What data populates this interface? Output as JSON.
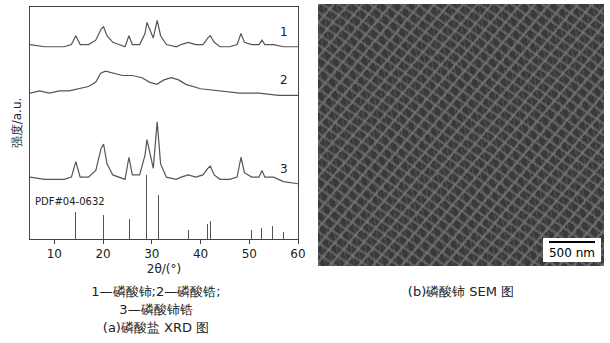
{
  "chart_data": {
    "type": "line",
    "x_title": "2θ/(°)",
    "y_title": "强度/a.u.",
    "xlim": [
      5,
      60
    ],
    "xticks": [
      10,
      20,
      30,
      40,
      50,
      60
    ],
    "ylim": [
      0,
      105
    ],
    "tick_labels": "x",
    "grid": false,
    "series": [
      {
        "name": "1",
        "color": "#555555",
        "x": [
          5,
          8,
          10,
          12,
          13.5,
          14.4,
          15.3,
          17,
          18.5,
          19.6,
          20.1,
          20.8,
          22,
          24.5,
          25.3,
          26,
          27.5,
          28.6,
          29.0,
          29.5,
          30.3,
          31.1,
          31.8,
          33,
          35,
          36,
          37.5,
          39,
          40.5,
          41.5,
          42.0,
          42.8,
          44,
          46,
          47.5,
          48.3,
          49,
          50.5,
          52,
          52.6,
          53.2,
          55,
          57,
          60
        ],
        "values": [
          88,
          87,
          87,
          87,
          88,
          92,
          88,
          88,
          90,
          95,
          96,
          92,
          89,
          87,
          92,
          88,
          88,
          93,
          98,
          95,
          91,
          99,
          92,
          88,
          87,
          88,
          89,
          88,
          88,
          91,
          92,
          89,
          87,
          87,
          88,
          93,
          89,
          88,
          88,
          90,
          88,
          88,
          87,
          87
        ]
      },
      {
        "name": "2",
        "color": "#555555",
        "x": [
          5,
          7,
          9,
          11,
          13,
          15,
          17,
          18.5,
          19.5,
          20.5,
          22,
          24,
          26,
          28,
          29.5,
          31,
          32.5,
          34,
          35.5,
          37,
          40,
          44,
          48,
          52,
          56,
          60
        ],
        "values": [
          66,
          67,
          66,
          67,
          67,
          68,
          69,
          71,
          75,
          76,
          75,
          74,
          74,
          73,
          71,
          70,
          72,
          73,
          72,
          70,
          68,
          67,
          66,
          66,
          65,
          65
        ]
      },
      {
        "name": "3",
        "color": "#555555",
        "x": [
          5,
          8,
          10,
          12,
          13.5,
          14.4,
          15.3,
          17,
          18.5,
          19.6,
          20.1,
          20.8,
          22,
          24.5,
          25.3,
          26,
          27.5,
          28.6,
          29.0,
          29.5,
          30.3,
          31.1,
          31.8,
          33,
          35,
          36,
          37.5,
          39,
          40.5,
          41.5,
          42.0,
          42.8,
          44,
          46,
          47.5,
          48.3,
          49,
          50.5,
          52,
          52.6,
          53.2,
          55,
          57,
          60
        ],
        "values": [
          28,
          27,
          27,
          27,
          28,
          35,
          28,
          28,
          31,
          41,
          43,
          34,
          29,
          27,
          37,
          29,
          29,
          38,
          45,
          40,
          32,
          53,
          34,
          28,
          27,
          28,
          29,
          28,
          29,
          32,
          33,
          29,
          27,
          27,
          28,
          37,
          30,
          28,
          28,
          31,
          28,
          28,
          26,
          25
        ]
      },
      {
        "name": "PDF#04-0632",
        "type": "bar",
        "color": "#555555",
        "x": [
          14.4,
          20.0,
          25.4,
          28.9,
          31.3,
          37.5,
          41.5,
          42.0,
          48.3,
          50.5,
          52.5,
          54.8,
          57.0
        ],
        "values": [
          12,
          11,
          9,
          29,
          20,
          4,
          7,
          8,
          9,
          4,
          5,
          6,
          3
        ]
      }
    ]
  },
  "captions": {
    "a": [
      "1—磷酸铈;2—磷酸锆;",
      "3—磷酸铈锆",
      "(a)磷酸盐 XRD 图"
    ],
    "b": "(b)磷酸铈 SEM 图"
  },
  "sem_image": {
    "scale_bar": "500 nm"
  }
}
